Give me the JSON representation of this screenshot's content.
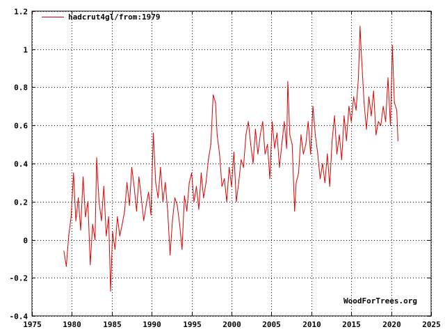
{
  "chart_data": {
    "type": "line",
    "title": "",
    "xlabel": "",
    "ylabel": "",
    "xlim": [
      1975,
      2025
    ],
    "ylim": [
      -0.4,
      1.2
    ],
    "x_ticks": [
      1975,
      1980,
      1985,
      1990,
      1995,
      2000,
      2005,
      2010,
      2015,
      2020,
      2025
    ],
    "x_tick_labels": [
      "1975",
      "1980",
      "1985",
      "1990",
      "1995",
      "2000",
      "2005",
      "2010",
      "2015",
      "2020",
      "2025"
    ],
    "y_ticks": [
      -0.4,
      -0.2,
      0,
      0.2,
      0.4,
      0.6,
      0.8,
      1,
      1.2
    ],
    "y_tick_labels": [
      "-0.4",
      "-0.2",
      "0",
      "0.2",
      "0.4",
      "0.6",
      "0.8",
      "1",
      "1.2"
    ],
    "legend_position": "top-left",
    "watermark": "WoodForTrees.org",
    "series": [
      {
        "name": "hadcrut4gl/from:1979",
        "color": "#dd0000",
        "x": [
          1979.0,
          1979.3,
          1979.6,
          1979.9,
          1980.2,
          1980.5,
          1980.8,
          1981.1,
          1981.4,
          1981.7,
          1982.0,
          1982.3,
          1982.6,
          1982.9,
          1983.1,
          1983.4,
          1983.7,
          1984.0,
          1984.3,
          1984.6,
          1984.85,
          1985.1,
          1985.4,
          1985.7,
          1986.0,
          1986.3,
          1986.6,
          1986.9,
          1987.2,
          1987.5,
          1987.8,
          1988.1,
          1988.4,
          1988.7,
          1989.0,
          1989.3,
          1989.6,
          1989.9,
          1990.2,
          1990.5,
          1990.8,
          1991.1,
          1991.4,
          1991.7,
          1992.0,
          1992.3,
          1992.6,
          1992.9,
          1993.2,
          1993.5,
          1993.8,
          1994.1,
          1994.4,
          1994.7,
          1995.0,
          1995.3,
          1995.6,
          1995.9,
          1996.2,
          1996.5,
          1996.8,
          1997.1,
          1997.4,
          1997.7,
          1998.0,
          1998.2,
          1998.5,
          1998.8,
          1999.1,
          1999.4,
          1999.7,
          2000.0,
          2000.3,
          2000.6,
          2000.9,
          2001.2,
          2001.5,
          2001.8,
          2002.1,
          2002.4,
          2002.7,
          2003.0,
          2003.3,
          2003.6,
          2003.9,
          2004.2,
          2004.5,
          2004.8,
          2005.1,
          2005.4,
          2005.7,
          2006.0,
          2006.3,
          2006.6,
          2006.9,
          2007.05,
          2007.3,
          2007.6,
          2007.9,
          2008.1,
          2008.4,
          2008.7,
          2009.0,
          2009.3,
          2009.6,
          2009.9,
          2010.2,
          2010.5,
          2010.8,
          2011.1,
          2011.4,
          2011.7,
          2012.0,
          2012.3,
          2012.6,
          2012.9,
          2013.2,
          2013.5,
          2013.8,
          2014.1,
          2014.4,
          2014.7,
          2015.0,
          2015.3,
          2015.6,
          2015.9,
          2016.1,
          2016.3,
          2016.6,
          2016.9,
          2017.2,
          2017.5,
          2017.8,
          2018.1,
          2018.4,
          2018.7,
          2019.0,
          2019.3,
          2019.6,
          2019.9,
          2020.15,
          2020.4,
          2020.7,
          2020.85
        ],
        "y": [
          -0.06,
          -0.14,
          0.02,
          0.12,
          0.35,
          0.1,
          0.22,
          0.05,
          0.33,
          0.12,
          0.2,
          -0.13,
          0.08,
          0.0,
          0.43,
          0.2,
          0.1,
          0.28,
          0.02,
          0.12,
          -0.27,
          0.04,
          -0.05,
          0.12,
          0.02,
          0.08,
          0.15,
          0.3,
          0.18,
          0.38,
          0.28,
          0.15,
          0.33,
          0.22,
          0.1,
          0.18,
          0.25,
          0.13,
          0.56,
          0.3,
          0.22,
          0.38,
          0.2,
          0.3,
          0.15,
          -0.08,
          0.1,
          0.22,
          0.18,
          0.08,
          -0.05,
          0.23,
          0.15,
          0.3,
          0.35,
          0.2,
          0.28,
          0.16,
          0.35,
          0.22,
          0.3,
          0.42,
          0.5,
          0.76,
          0.72,
          0.55,
          0.45,
          0.28,
          0.32,
          0.2,
          0.38,
          0.28,
          0.46,
          0.2,
          0.3,
          0.42,
          0.38,
          0.55,
          0.62,
          0.5,
          0.4,
          0.58,
          0.45,
          0.55,
          0.62,
          0.45,
          0.5,
          0.32,
          0.62,
          0.48,
          0.56,
          0.38,
          0.5,
          0.62,
          0.48,
          0.83,
          0.55,
          0.5,
          0.15,
          0.3,
          0.35,
          0.55,
          0.45,
          0.5,
          0.62,
          0.45,
          0.7,
          0.55,
          0.45,
          0.32,
          0.4,
          0.3,
          0.45,
          0.28,
          0.52,
          0.65,
          0.45,
          0.55,
          0.42,
          0.65,
          0.52,
          0.7,
          0.62,
          0.75,
          0.68,
          0.85,
          1.12,
          0.95,
          0.72,
          0.58,
          0.75,
          0.65,
          0.78,
          0.55,
          0.62,
          0.6,
          0.7,
          0.62,
          0.85,
          0.6,
          1.02,
          0.72,
          0.68,
          0.52
        ]
      }
    ]
  }
}
